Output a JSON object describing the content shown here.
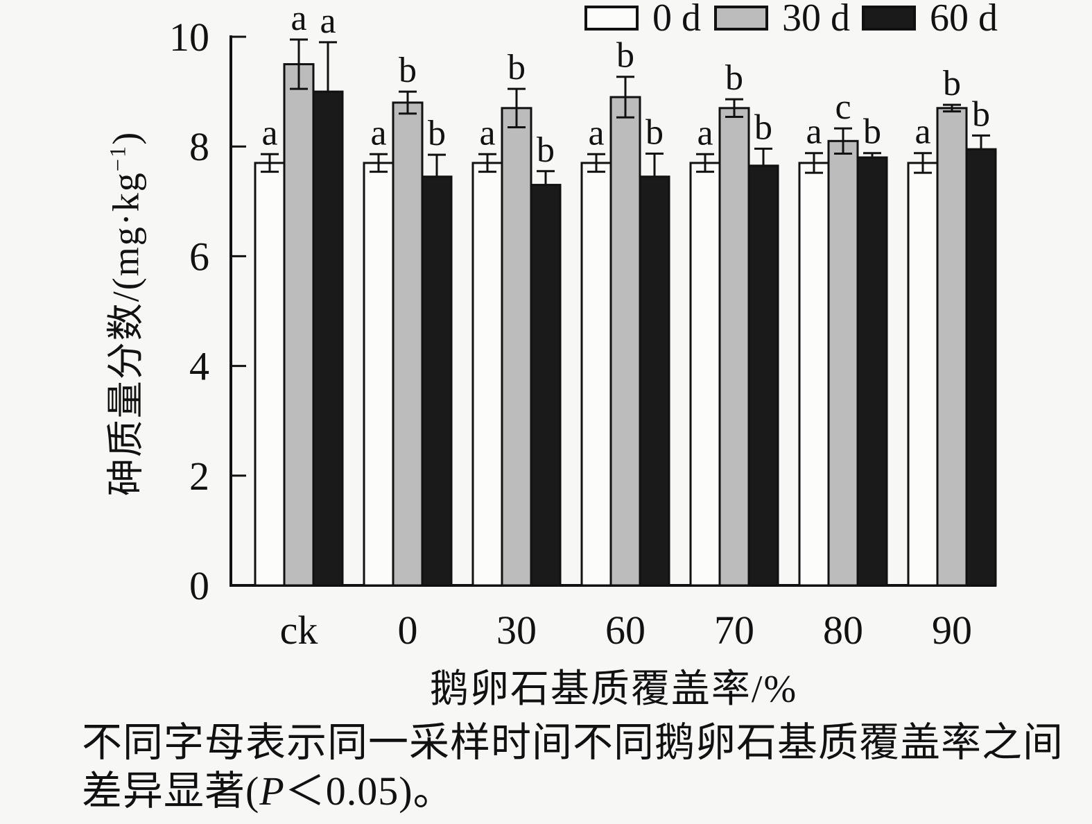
{
  "figure": {
    "background": "#f7f7f5"
  },
  "legend": {
    "position": "top-right",
    "items": [
      {
        "label": "0 d",
        "color": "#fcfcfb",
        "border": "#111111"
      },
      {
        "label": "30 d",
        "color": "#bcbcbc",
        "border": "#111111"
      },
      {
        "label": "60 d",
        "color": "#1a1a1a",
        "border": "#111111"
      }
    ]
  },
  "axes": {
    "y_label_prefix": "砷质量分数/(mg·kg",
    "y_label_sup": "−1",
    "y_label_suffix": ")",
    "x_label": "鹅卵石基质覆盖率/%"
  },
  "caption": {
    "line1": "不同字母表示同一采样时间不同鹅卵石基质覆盖率之间",
    "line2_prefix": "差异显著(",
    "line2_p": "P",
    "line2_suffix": "＜0.05)。"
  },
  "chart_data": {
    "type": "bar",
    "title": "",
    "xlabel": "鹅卵石基质覆盖率/%",
    "ylabel": "砷质量分数/(mg·kg⁻¹)",
    "ylim": [
      0,
      10
    ],
    "yticks": [
      0,
      2,
      4,
      6,
      8,
      10
    ],
    "grid": false,
    "legend_position": "top-right",
    "categories": [
      "ck",
      "0",
      "30",
      "60",
      "70",
      "80",
      "90"
    ],
    "series": [
      {
        "name": "0 d",
        "fill": "#fcfcfb",
        "stroke": "#111111",
        "values": [
          7.7,
          7.7,
          7.7,
          7.7,
          7.7,
          7.7,
          7.7
        ],
        "errors": [
          0.16,
          0.16,
          0.16,
          0.16,
          0.16,
          0.18,
          0.18
        ],
        "letters": [
          "a",
          "a",
          "a",
          "a",
          "a",
          "a",
          "a"
        ]
      },
      {
        "name": "30 d",
        "fill": "#bcbcbc",
        "stroke": "#111111",
        "values": [
          9.5,
          8.8,
          8.7,
          8.9,
          8.7,
          8.1,
          8.7
        ],
        "errors": [
          0.45,
          0.2,
          0.35,
          0.37,
          0.16,
          0.23,
          0.06
        ],
        "letters": [
          "a",
          "b",
          "b",
          "b",
          "b",
          "c",
          "b"
        ]
      },
      {
        "name": "60 d",
        "fill": "#1a1a1a",
        "stroke": "#111111",
        "values": [
          9.0,
          7.45,
          7.3,
          7.45,
          7.65,
          7.8,
          7.95
        ],
        "errors": [
          0.9,
          0.4,
          0.25,
          0.42,
          0.31,
          0.08,
          0.25
        ],
        "letters": [
          "a",
          "b",
          "b",
          "b",
          "b",
          "b",
          "b"
        ]
      }
    ]
  }
}
